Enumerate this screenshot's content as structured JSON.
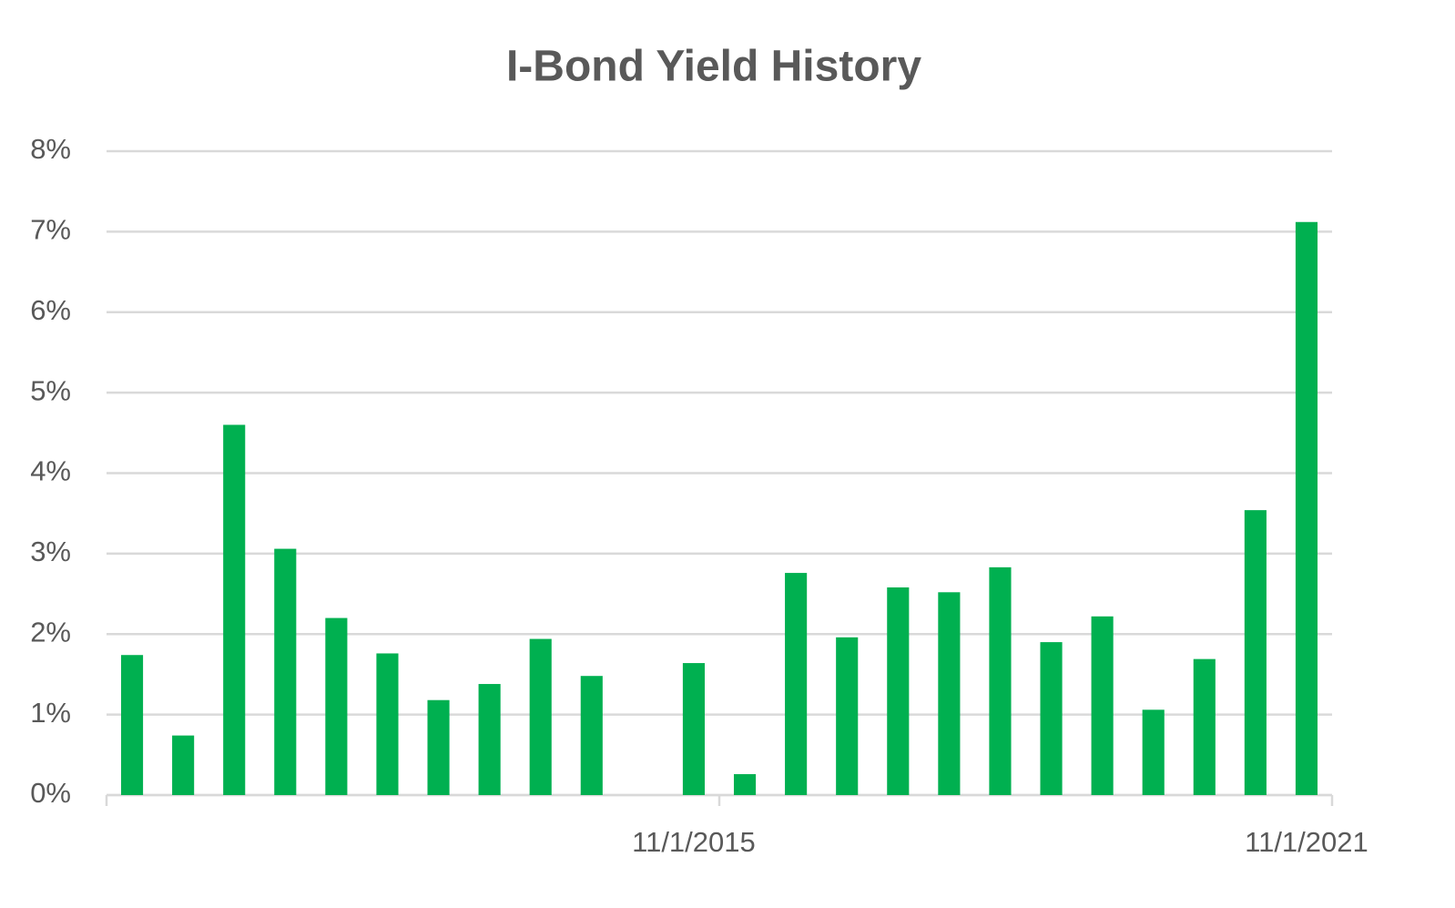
{
  "chart_data": {
    "type": "bar",
    "title": "I-Bond Yield History",
    "categories": [
      null,
      null,
      null,
      null,
      null,
      null,
      null,
      null,
      null,
      null,
      null,
      "11/1/2015",
      null,
      null,
      null,
      null,
      null,
      null,
      null,
      null,
      null,
      null,
      null,
      "11/1/2021"
    ],
    "values": [
      1.74,
      0.74,
      4.6,
      3.06,
      2.2,
      1.76,
      1.18,
      1.38,
      1.94,
      1.48,
      0,
      1.64,
      0.26,
      2.76,
      1.96,
      2.58,
      2.52,
      2.83,
      1.9,
      2.22,
      1.06,
      1.69,
      3.54,
      7.12
    ],
    "color": "#00b050",
    "ylim": [
      0,
      8
    ],
    "yticks": [
      {
        "value": 0,
        "label": "0%"
      },
      {
        "value": 1,
        "label": "1%"
      },
      {
        "value": 2,
        "label": "2%"
      },
      {
        "value": 3,
        "label": "3%"
      },
      {
        "value": 4,
        "label": "4%"
      },
      {
        "value": 5,
        "label": "5%"
      },
      {
        "value": 6,
        "label": "6%"
      },
      {
        "value": 7,
        "label": "7%"
      },
      {
        "value": 8,
        "label": "8%"
      }
    ],
    "grid": true
  }
}
